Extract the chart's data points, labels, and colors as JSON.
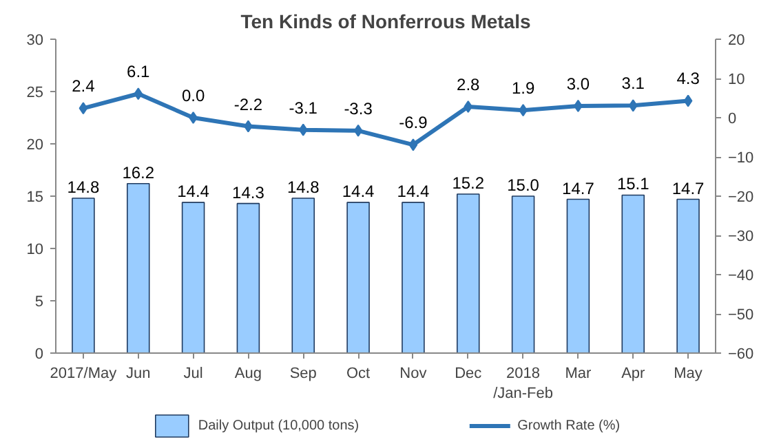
{
  "chart_data": {
    "type": "bar",
    "title": "Ten Kinds of Nonferrous Metals",
    "categories": [
      "2017/May",
      "Jun",
      "Jul",
      "Aug",
      "Sep",
      "Oct",
      "Nov",
      "Dec",
      "2018\n/Jan-Feb",
      "Mar",
      "Apr",
      "May"
    ],
    "series": [
      {
        "name": "Daily Output (10,000 tons)",
        "color": "#99ccff",
        "values": [
          14.8,
          16.2,
          14.4,
          14.3,
          14.8,
          14.4,
          14.4,
          15.2,
          15.0,
          14.7,
          15.1,
          14.7
        ],
        "value_labels": [
          "14.8",
          "16.2",
          "14.4",
          "14.3",
          "14.8",
          "14.4",
          "14.4",
          "15.2",
          "15.0",
          "14.7",
          "15.1",
          "14.7"
        ]
      },
      {
        "name": "Growth Rate (%)",
        "type": "line",
        "axis": "y2",
        "color": "#2e75b6",
        "marker": "diamond",
        "line_style": "solid",
        "values": [
          2.4,
          6.1,
          0.0,
          -2.2,
          -3.1,
          -3.3,
          -6.9,
          2.8,
          1.9,
          3.0,
          3.1,
          4.3
        ],
        "value_labels": [
          "2.4",
          "6.1",
          "0.0",
          "-2.2",
          "-3.1",
          "-3.3",
          "-6.9",
          "2.8",
          "1.9",
          "3.0",
          "3.1",
          "4.3"
        ]
      }
    ],
    "ylim": [
      0,
      30
    ],
    "yticks": [
      0,
      5,
      10,
      15,
      20,
      25,
      30
    ],
    "y2lim": [
      -60,
      20
    ],
    "y2ticks": [
      -60,
      -50,
      -40,
      -30,
      -20,
      -10,
      0,
      10,
      20
    ],
    "grid": false,
    "legend": "bottom"
  }
}
